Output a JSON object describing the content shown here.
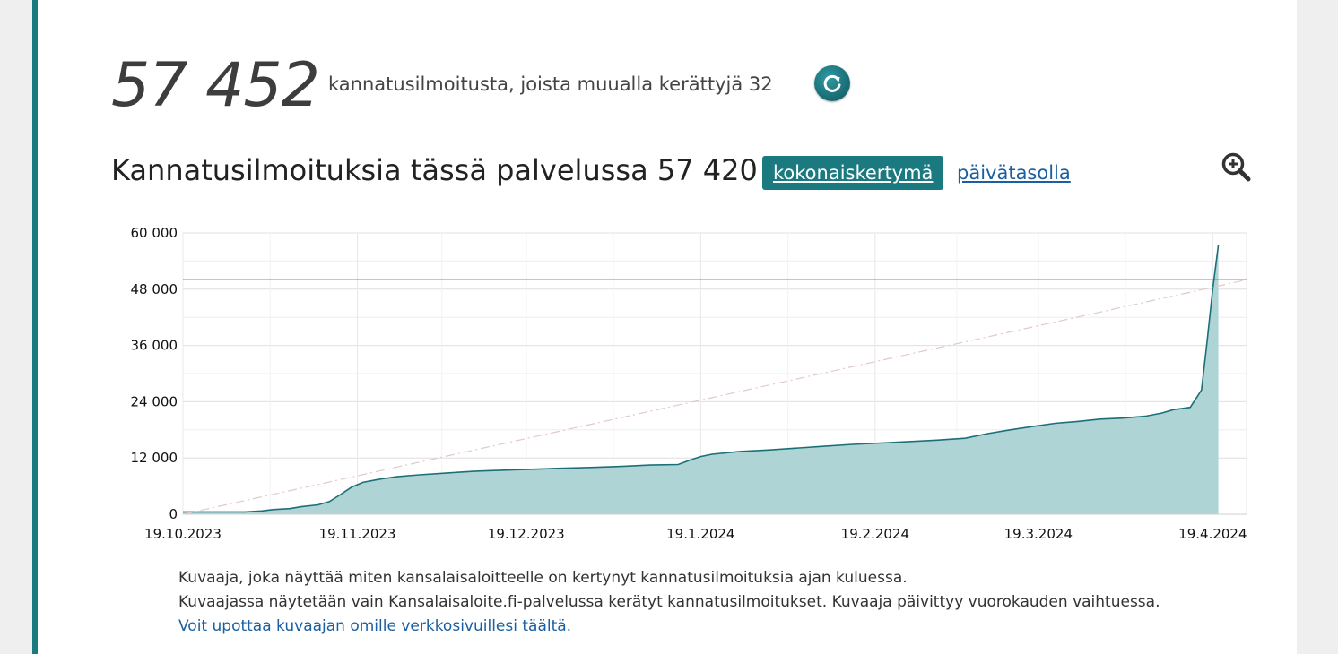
{
  "summary": {
    "total_count": "57 452",
    "description": "kannatusilmoitusta, joista muualla kerättyjä 32"
  },
  "section": {
    "title": "Kannatusilmoituksia tässä palvelussa 57 420",
    "tabs": [
      {
        "label": "kokonaiskertymä",
        "active": true
      },
      {
        "label": "päivätasolla",
        "active": false
      }
    ]
  },
  "icons": {
    "refresh": "refresh-icon",
    "zoom": "zoom-in-icon"
  },
  "colors": {
    "accent": "#1b7a80",
    "area_fill": "#afd4d6",
    "line": "#1b7078",
    "target_line": "#c0306e",
    "trend_line": "#e2c9c9",
    "link": "#1b5fa0"
  },
  "chart_data": {
    "type": "area",
    "x_start": "2023-10-19",
    "x_end": "2024-04-25",
    "ylim": [
      0,
      60000
    ],
    "yticks": [
      {
        "value": 0,
        "label": "0"
      },
      {
        "value": 12000,
        "label": "12 000"
      },
      {
        "value": 24000,
        "label": "24 000"
      },
      {
        "value": 36000,
        "label": "36 000"
      },
      {
        "value": 48000,
        "label": "48 000"
      },
      {
        "value": 60000,
        "label": "60 000"
      }
    ],
    "xticks": [
      {
        "date": "2023-10-19",
        "label": "19.10.2023"
      },
      {
        "date": "2023-11-19",
        "label": "19.11.2023"
      },
      {
        "date": "2023-12-19",
        "label": "19.12.2023"
      },
      {
        "date": "2024-01-19",
        "label": "19.1.2024"
      },
      {
        "date": "2024-02-19",
        "label": "19.2.2024"
      },
      {
        "date": "2024-03-19",
        "label": "19.3.2024"
      },
      {
        "date": "2024-04-19",
        "label": "19.4.2024"
      }
    ],
    "target": 50000,
    "trend_line": {
      "from": {
        "date": "2023-10-19",
        "value": 0
      },
      "to": {
        "date": "2024-04-25",
        "value": 50000
      }
    },
    "series": [
      {
        "points": [
          {
            "date": "2023-10-19",
            "value": 500
          },
          {
            "date": "2023-10-24",
            "value": 500
          },
          {
            "date": "2023-10-30",
            "value": 500
          },
          {
            "date": "2023-11-02",
            "value": 700
          },
          {
            "date": "2023-11-04",
            "value": 1000
          },
          {
            "date": "2023-11-07",
            "value": 1200
          },
          {
            "date": "2023-11-09",
            "value": 1600
          },
          {
            "date": "2023-11-12",
            "value": 2000
          },
          {
            "date": "2023-11-14",
            "value": 2700
          },
          {
            "date": "2023-11-16",
            "value": 4200
          },
          {
            "date": "2023-11-18",
            "value": 5800
          },
          {
            "date": "2023-11-20",
            "value": 6800
          },
          {
            "date": "2023-11-23",
            "value": 7500
          },
          {
            "date": "2023-11-26",
            "value": 8000
          },
          {
            "date": "2023-11-30",
            "value": 8400
          },
          {
            "date": "2023-12-05",
            "value": 8800
          },
          {
            "date": "2023-12-10",
            "value": 9200
          },
          {
            "date": "2023-12-15",
            "value": 9400
          },
          {
            "date": "2023-12-20",
            "value": 9600
          },
          {
            "date": "2023-12-25",
            "value": 9800
          },
          {
            "date": "2023-12-31",
            "value": 10000
          },
          {
            "date": "2024-01-05",
            "value": 10200
          },
          {
            "date": "2024-01-10",
            "value": 10500
          },
          {
            "date": "2024-01-15",
            "value": 10600
          },
          {
            "date": "2024-01-17",
            "value": 11500
          },
          {
            "date": "2024-01-19",
            "value": 12300
          },
          {
            "date": "2024-01-21",
            "value": 12800
          },
          {
            "date": "2024-01-26",
            "value": 13400
          },
          {
            "date": "2024-01-31",
            "value": 13700
          },
          {
            "date": "2024-02-05",
            "value": 14100
          },
          {
            "date": "2024-02-10",
            "value": 14500
          },
          {
            "date": "2024-02-15",
            "value": 14900
          },
          {
            "date": "2024-02-20",
            "value": 15200
          },
          {
            "date": "2024-02-25",
            "value": 15500
          },
          {
            "date": "2024-03-01",
            "value": 15800
          },
          {
            "date": "2024-03-06",
            "value": 16200
          },
          {
            "date": "2024-03-10",
            "value": 17200
          },
          {
            "date": "2024-03-14",
            "value": 18000
          },
          {
            "date": "2024-03-18",
            "value": 18700
          },
          {
            "date": "2024-03-22",
            "value": 19400
          },
          {
            "date": "2024-03-26",
            "value": 19800
          },
          {
            "date": "2024-03-30",
            "value": 20300
          },
          {
            "date": "2024-04-03",
            "value": 20500
          },
          {
            "date": "2024-04-07",
            "value": 20900
          },
          {
            "date": "2024-04-10",
            "value": 21600
          },
          {
            "date": "2024-04-12",
            "value": 22300
          },
          {
            "date": "2024-04-15",
            "value": 22800
          },
          {
            "date": "2024-04-17",
            "value": 26500
          },
          {
            "date": "2024-04-18",
            "value": 37000
          },
          {
            "date": "2024-04-19",
            "value": 48000
          },
          {
            "date": "2024-04-20",
            "value": 57420
          }
        ]
      }
    ]
  },
  "caption": {
    "line1": "Kuvaaja, joka näyttää miten kansalaisaloitteelle on kertynyt kannatusilmoituksia ajan kuluessa.",
    "line2": "Kuvaajassa näytetään vain Kansalaisaloite.fi-palvelussa kerätyt kannatusilmoitukset. Kuvaaja päivittyy vuorokauden vaihtuessa.",
    "embed_link": "Voit upottaa kuvaajan omille verkkosivuillesi täältä."
  }
}
